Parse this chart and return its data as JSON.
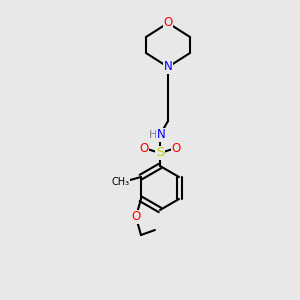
{
  "bg_color": "#e8e8e8",
  "bond_color": "#000000",
  "bond_lw": 1.5,
  "figsize": [
    3.0,
    3.0
  ],
  "dpi": 100,
  "atom_colors": {
    "O": "#ff0000",
    "N": "#0000ff",
    "S": "#cccc00",
    "C": "#000000",
    "H": "#7f7f7f"
  },
  "font_size": 8.5
}
